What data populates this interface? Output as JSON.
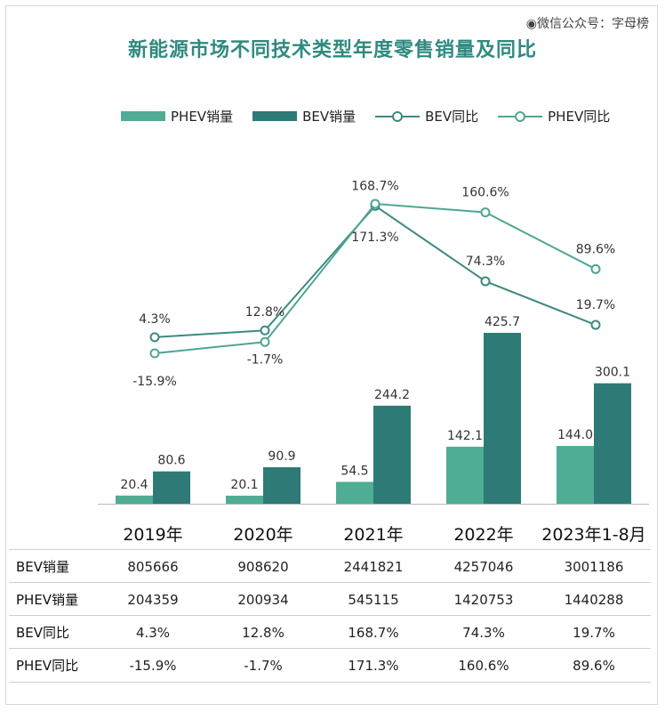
{
  "watermark": "◉微信公众号：字母榜",
  "chart_data": {
    "type": "bar",
    "title": "新能源市场不同技术类型年度零售销量及同比",
    "categories": [
      "2019年",
      "2020年",
      "2021年",
      "2022年",
      "2023年1-8月"
    ],
    "legend": {
      "phev_sales": "PHEV销量",
      "bev_sales": "BEV销量",
      "bev_yoy": "BEV同比",
      "phev_yoy": "PHEV同比",
      "position": "top"
    },
    "series": [
      {
        "name": "PHEV销量",
        "type": "bar",
        "color": "#4fad96",
        "values": [
          20.4,
          20.1,
          54.5,
          142.1,
          144.0
        ],
        "labels": [
          "20.4",
          "20.1",
          "54.5",
          "142.1",
          "144.0"
        ]
      },
      {
        "name": "BEV销量",
        "type": "bar",
        "color": "#2d7a76",
        "values": [
          80.6,
          90.9,
          244.2,
          425.7,
          300.1
        ],
        "labels": [
          "80.6",
          "90.9",
          "244.2",
          "425.7",
          "300.1"
        ]
      },
      {
        "name": "BEV同比",
        "type": "line",
        "color": "#3d8a82",
        "values": [
          4.3,
          12.8,
          168.7,
          74.3,
          19.7
        ],
        "labels": [
          "4.3%",
          "12.8%",
          "168.7%",
          "74.3%",
          "19.7%"
        ]
      },
      {
        "name": "PHEV同比",
        "type": "line",
        "color": "#4fa595",
        "values": [
          -15.9,
          -1.7,
          171.3,
          160.6,
          89.6
        ],
        "labels": [
          "-15.9%",
          "-1.7%",
          "171.3%",
          "160.6%",
          "89.6%"
        ]
      }
    ],
    "grid": false
  },
  "table": {
    "rows": [
      {
        "label": "BEV销量",
        "cells": [
          "805666",
          "908620",
          "2441821",
          "4257046",
          "3001186"
        ]
      },
      {
        "label": "PHEV销量",
        "cells": [
          "204359",
          "200934",
          "545115",
          "1420753",
          "1440288"
        ]
      },
      {
        "label": "BEV同比",
        "cells": [
          "4.3%",
          "12.8%",
          "168.7%",
          "74.3%",
          "19.7%"
        ]
      },
      {
        "label": "PHEV同比",
        "cells": [
          "-15.9%",
          "-1.7%",
          "171.3%",
          "160.6%",
          "89.6%"
        ]
      }
    ]
  }
}
